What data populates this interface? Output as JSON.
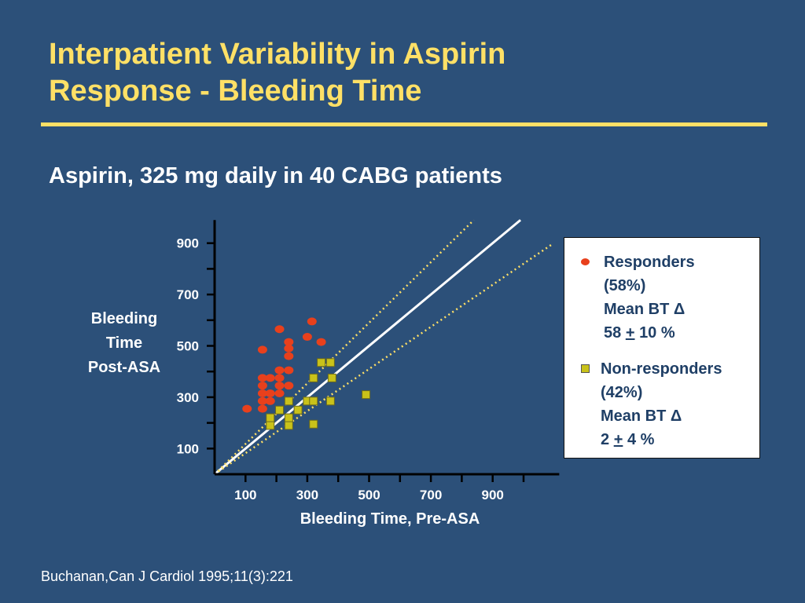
{
  "slide": {
    "title_line1": "Interpatient Variability in Aspirin",
    "title_line2": "Response - Bleeding Time",
    "subtitle": "Aspirin, 325 mg daily in 40 CABG patients",
    "citation": "Buchanan,Can J Cardiol 1995;11(3):221"
  },
  "legend": {
    "responders": {
      "line1": "Responders",
      "line2": "(58%)",
      "line3": "Mean BT Δ",
      "value": "58",
      "pm": "+",
      "unit": "10 %"
    },
    "non_responders": {
      "line1": "Non-responders",
      "line2": "(42%)",
      "line3": "Mean BT Δ",
      "value": "2",
      "pm": "+",
      "unit": "4 %"
    }
  },
  "colors": {
    "background": "#2c5079",
    "title": "#ffe066",
    "responder": "#e8401c",
    "non_responder": "#c9c21a",
    "identity_line": "#ffffff",
    "band_line": "#ffe066"
  },
  "chart_data": {
    "type": "scatter",
    "title": "",
    "xlabel": "Bleeding Time, Pre-ASA",
    "ylabel_lines": [
      "Bleeding",
      "Time",
      "Post-ASA"
    ],
    "x_ticks": [
      100,
      300,
      500,
      700,
      900
    ],
    "y_ticks": [
      100,
      300,
      500,
      700,
      900
    ],
    "xlim": [
      0,
      1090
    ],
    "ylim": [
      0,
      990
    ],
    "reference_lines": [
      {
        "style": "solid",
        "slope": 1.0
      },
      {
        "style": "dotted",
        "slope": 1.18
      },
      {
        "style": "dotted",
        "slope": 0.82
      }
    ],
    "series": [
      {
        "name": "Responders",
        "marker": "circle",
        "points": [
          [
            105,
            255
          ],
          [
            155,
            255
          ],
          [
            155,
            285
          ],
          [
            155,
            315
          ],
          [
            155,
            345
          ],
          [
            155,
            375
          ],
          [
            180,
            285
          ],
          [
            180,
            315
          ],
          [
            180,
            375
          ],
          [
            210,
            315
          ],
          [
            210,
            345
          ],
          [
            210,
            375
          ],
          [
            210,
            405
          ],
          [
            240,
            345
          ],
          [
            240,
            405
          ],
          [
            240,
            460
          ],
          [
            240,
            490
          ],
          [
            240,
            515
          ],
          [
            155,
            485
          ],
          [
            210,
            565
          ],
          [
            300,
            535
          ],
          [
            315,
            595
          ],
          [
            345,
            515
          ]
        ]
      },
      {
        "name": "Non-responders",
        "marker": "square",
        "points": [
          [
            180,
            190
          ],
          [
            180,
            220
          ],
          [
            210,
            250
          ],
          [
            240,
            190
          ],
          [
            240,
            220
          ],
          [
            240,
            285
          ],
          [
            270,
            250
          ],
          [
            300,
            285
          ],
          [
            320,
            195
          ],
          [
            320,
            285
          ],
          [
            320,
            375
          ],
          [
            345,
            435
          ],
          [
            375,
            435
          ],
          [
            375,
            285
          ],
          [
            380,
            375
          ],
          [
            490,
            310
          ]
        ]
      }
    ]
  }
}
